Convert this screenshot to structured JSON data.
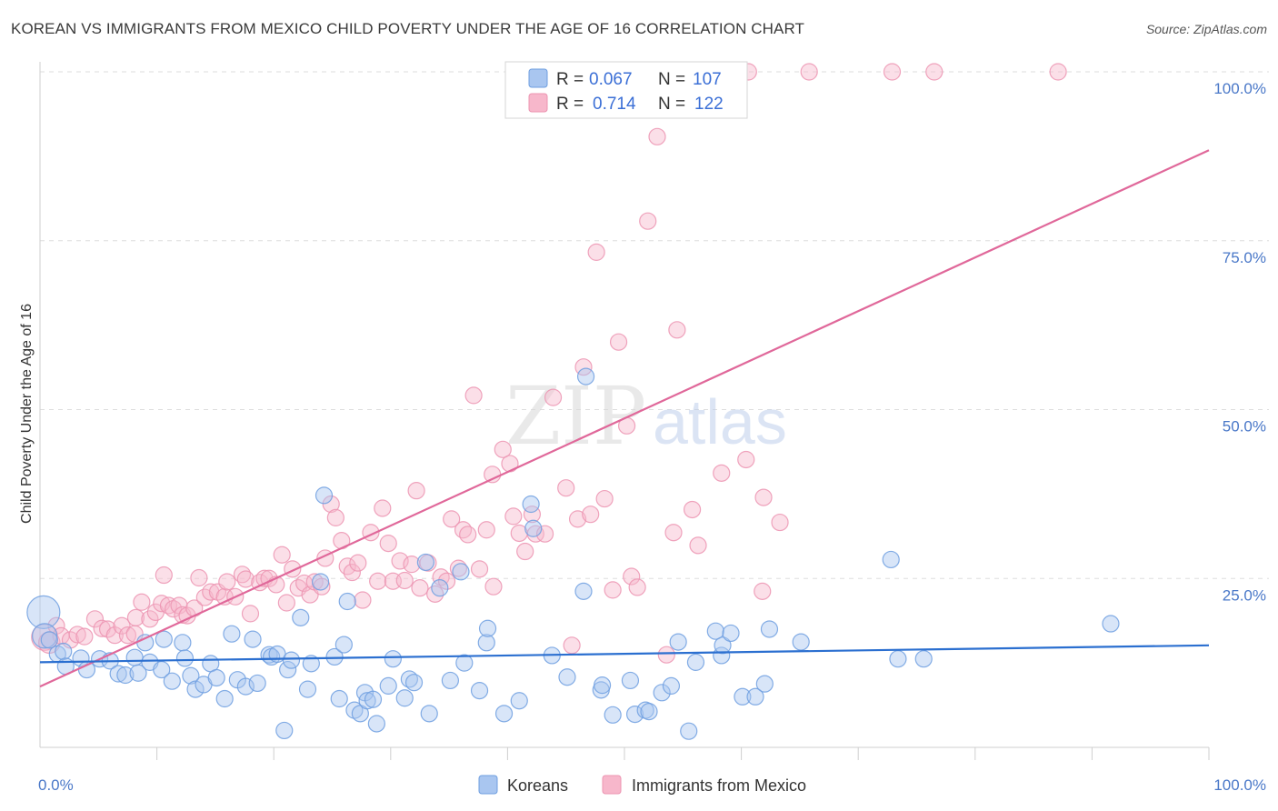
{
  "header": {
    "title": "KOREAN VS IMMIGRANTS FROM MEXICO CHILD POVERTY UNDER THE AGE OF 16 CORRELATION CHART",
    "source": "Source: ZipAtlas.com"
  },
  "watermark": {
    "zip": "ZIP",
    "atlas": "atlas"
  },
  "legend": {
    "korean": {
      "r_label": "R =",
      "r_value": "0.067",
      "n_label": "N =",
      "n_value": "107"
    },
    "mexico": {
      "r_label": "R =",
      "r_value": "0.714",
      "n_label": "N =",
      "n_value": "122"
    }
  },
  "bottom_legend": {
    "korean": "Koreans",
    "mexico": "Immigrants from Mexico"
  },
  "colors": {
    "korean_fill": "#a9c6f0",
    "korean_stroke": "#6f9fe0",
    "korean_line": "#2b6fd0",
    "mexico_fill": "#f7b7cb",
    "mexico_stroke": "#ec94b2",
    "mexico_line": "#e0689a",
    "tick_text": "#4a78c8",
    "grid": "#dedede"
  },
  "chart_data": {
    "type": "scatter",
    "title": "KOREAN VS IMMIGRANTS FROM MEXICO CHILD POVERTY UNDER THE AGE OF 16 CORRELATION CHART",
    "xlabel": "",
    "ylabel": "Child Poverty Under the Age of 16",
    "xlim": [
      0,
      100
    ],
    "ylim": [
      0,
      100
    ],
    "x_tick_labels": [
      "0.0%",
      "100.0%"
    ],
    "y_tick_labels": [
      "100.0%",
      "75.0%",
      "50.0%",
      "25.0%"
    ],
    "y_ticks": [
      100,
      75,
      50,
      25
    ],
    "grid": true,
    "legend_position": "top-center",
    "series": [
      {
        "name": "Koreans",
        "r": 0.067,
        "n": 107,
        "trend": [
          [
            0,
            12.6
          ],
          [
            100,
            15.1
          ]
        ],
        "points": [
          [
            0.3,
            20.0,
            2
          ],
          [
            0.4,
            16.5,
            1.5
          ],
          [
            0.8,
            15.9,
            1
          ],
          [
            1.5,
            13.8,
            1
          ],
          [
            2.0,
            14.2,
            1
          ],
          [
            2.2,
            12.0,
            1
          ],
          [
            3.5,
            13.2,
            1
          ],
          [
            4.0,
            11.5,
            1
          ],
          [
            5.1,
            13.1,
            1
          ],
          [
            6.0,
            12.8,
            1
          ],
          [
            6.7,
            10.9,
            1
          ],
          [
            7.3,
            10.7,
            1
          ],
          [
            8.1,
            13.3,
            1
          ],
          [
            8.4,
            11.0,
            1
          ],
          [
            9.0,
            15.5,
            1
          ],
          [
            9.4,
            12.6,
            1
          ],
          [
            10.4,
            11.5,
            1
          ],
          [
            10.6,
            16.0,
            1
          ],
          [
            11.3,
            9.8,
            1
          ],
          [
            12.2,
            15.5,
            1
          ],
          [
            12.4,
            13.2,
            1
          ],
          [
            12.9,
            10.6,
            1
          ],
          [
            13.3,
            8.6,
            1
          ],
          [
            14.0,
            9.3,
            1
          ],
          [
            14.6,
            12.4,
            1
          ],
          [
            15.1,
            10.3,
            1
          ],
          [
            15.8,
            7.2,
            1
          ],
          [
            16.4,
            16.8,
            1
          ],
          [
            16.9,
            10.0,
            1
          ],
          [
            17.6,
            9.0,
            1
          ],
          [
            18.2,
            16.0,
            1
          ],
          [
            18.6,
            9.5,
            1
          ],
          [
            19.6,
            13.7,
            1
          ],
          [
            19.8,
            13.4,
            1
          ],
          [
            20.3,
            13.8,
            1
          ],
          [
            20.9,
            2.5,
            1
          ],
          [
            21.2,
            11.5,
            1
          ],
          [
            21.5,
            12.9,
            1
          ],
          [
            22.3,
            19.2,
            1
          ],
          [
            22.9,
            8.6,
            1
          ],
          [
            23.2,
            12.4,
            1
          ],
          [
            24.0,
            24.5,
            1
          ],
          [
            24.3,
            37.3,
            1
          ],
          [
            25.2,
            13.4,
            1
          ],
          [
            25.6,
            7.2,
            1
          ],
          [
            26.0,
            15.2,
            1
          ],
          [
            26.3,
            21.6,
            1
          ],
          [
            26.9,
            5.5,
            1
          ],
          [
            27.4,
            5.0,
            1
          ],
          [
            27.8,
            8.1,
            1
          ],
          [
            28.0,
            6.9,
            1
          ],
          [
            28.5,
            7.1,
            1
          ],
          [
            28.8,
            3.5,
            1
          ],
          [
            29.8,
            9.1,
            1
          ],
          [
            30.2,
            13.1,
            1
          ],
          [
            31.2,
            7.3,
            1
          ],
          [
            31.6,
            10.1,
            1
          ],
          [
            32.0,
            9.6,
            1
          ],
          [
            33.0,
            27.4,
            1
          ],
          [
            33.3,
            5.0,
            1
          ],
          [
            34.2,
            23.6,
            1
          ],
          [
            35.1,
            9.9,
            1
          ],
          [
            36.0,
            26.0,
            1
          ],
          [
            36.3,
            12.5,
            1
          ],
          [
            37.6,
            8.4,
            1
          ],
          [
            38.2,
            15.5,
            1
          ],
          [
            38.3,
            17.6,
            1
          ],
          [
            39.7,
            5.0,
            1
          ],
          [
            41.0,
            6.9,
            1
          ],
          [
            42.0,
            36.0,
            1
          ],
          [
            42.2,
            32.4,
            1
          ],
          [
            43.8,
            13.6,
            1
          ],
          [
            45.1,
            10.4,
            1
          ],
          [
            46.7,
            54.9,
            1
          ],
          [
            46.5,
            23.1,
            1
          ],
          [
            48.0,
            8.5,
            1
          ],
          [
            48.1,
            9.2,
            1
          ],
          [
            49.0,
            4.8,
            1
          ],
          [
            50.5,
            9.9,
            1
          ],
          [
            50.9,
            4.9,
            1
          ],
          [
            51.8,
            5.5,
            1
          ],
          [
            52.1,
            5.3,
            1
          ],
          [
            53.2,
            8.1,
            1
          ],
          [
            54.0,
            9.1,
            1
          ],
          [
            54.6,
            15.6,
            1
          ],
          [
            55.5,
            2.4,
            1
          ],
          [
            56.1,
            12.6,
            1
          ],
          [
            57.8,
            17.2,
            1
          ],
          [
            58.3,
            13.6,
            1
          ],
          [
            58.4,
            15.1,
            1
          ],
          [
            59.1,
            16.9,
            1
          ],
          [
            60.1,
            7.5,
            1
          ],
          [
            61.2,
            7.5,
            1
          ],
          [
            62.0,
            9.4,
            1
          ],
          [
            62.4,
            17.5,
            1
          ],
          [
            65.1,
            15.6,
            1
          ],
          [
            72.8,
            27.8,
            1
          ],
          [
            73.4,
            13.1,
            1
          ],
          [
            75.6,
            13.1,
            1
          ],
          [
            91.6,
            18.3,
            1
          ]
        ]
      },
      {
        "name": "Immigrants from Mexico",
        "r": 0.714,
        "n": 122,
        "trend": [
          [
            0,
            9.0
          ],
          [
            100,
            88.4
          ]
        ],
        "points": [
          [
            0.4,
            16.3,
            1.6
          ],
          [
            0.8,
            15.5,
            1.3
          ],
          [
            1.4,
            18.0,
            1
          ],
          [
            1.8,
            16.5,
            1
          ],
          [
            2.6,
            15.9,
            1
          ],
          [
            3.2,
            16.7,
            1
          ],
          [
            3.8,
            16.4,
            1
          ],
          [
            4.7,
            19.0,
            1
          ],
          [
            5.3,
            17.6,
            1
          ],
          [
            5.8,
            17.5,
            1
          ],
          [
            6.4,
            16.6,
            1
          ],
          [
            7.0,
            18.0,
            1
          ],
          [
            7.5,
            16.6,
            1
          ],
          [
            8.1,
            16.8,
            1
          ],
          [
            8.2,
            19.2,
            1
          ],
          [
            8.7,
            21.5,
            1
          ],
          [
            9.4,
            19.0,
            1
          ],
          [
            9.9,
            20.0,
            1
          ],
          [
            10.4,
            21.3,
            1
          ],
          [
            10.6,
            25.5,
            1
          ],
          [
            11.0,
            21.0,
            1
          ],
          [
            11.4,
            20.5,
            1
          ],
          [
            11.9,
            21.0,
            1
          ],
          [
            12.2,
            19.6,
            1
          ],
          [
            12.6,
            19.5,
            1
          ],
          [
            13.2,
            20.6,
            1
          ],
          [
            13.6,
            25.1,
            1
          ],
          [
            14.1,
            22.2,
            1
          ],
          [
            14.6,
            23.0,
            1
          ],
          [
            15.2,
            23.0,
            1
          ],
          [
            15.8,
            22.3,
            1
          ],
          [
            16.0,
            24.5,
            1
          ],
          [
            16.7,
            22.3,
            1
          ],
          [
            17.3,
            25.6,
            1
          ],
          [
            17.6,
            24.9,
            1
          ],
          [
            18.0,
            19.8,
            1
          ],
          [
            18.8,
            24.4,
            1
          ],
          [
            19.2,
            25.0,
            1
          ],
          [
            19.6,
            25.0,
            1
          ],
          [
            20.2,
            24.1,
            1
          ],
          [
            20.7,
            28.5,
            1
          ],
          [
            21.1,
            21.4,
            1
          ],
          [
            21.6,
            26.4,
            1
          ],
          [
            22.1,
            23.6,
            1
          ],
          [
            22.6,
            24.3,
            1
          ],
          [
            23.1,
            22.6,
            1
          ],
          [
            23.5,
            24.5,
            1
          ],
          [
            24.1,
            23.8,
            1
          ],
          [
            24.4,
            28.0,
            1
          ],
          [
            24.9,
            36.0,
            1
          ],
          [
            25.3,
            34.0,
            1
          ],
          [
            25.8,
            30.6,
            1
          ],
          [
            26.3,
            26.8,
            1
          ],
          [
            26.7,
            25.9,
            1
          ],
          [
            27.2,
            27.3,
            1
          ],
          [
            27.6,
            21.8,
            1
          ],
          [
            28.3,
            31.8,
            1
          ],
          [
            28.9,
            24.6,
            1
          ],
          [
            29.3,
            35.4,
            1
          ],
          [
            29.8,
            30.2,
            1
          ],
          [
            30.2,
            24.6,
            1
          ],
          [
            30.8,
            27.6,
            1
          ],
          [
            31.2,
            24.7,
            1
          ],
          [
            31.8,
            27.1,
            1
          ],
          [
            32.2,
            38.0,
            1
          ],
          [
            32.5,
            23.6,
            1
          ],
          [
            33.2,
            27.3,
            1
          ],
          [
            33.8,
            22.7,
            1
          ],
          [
            34.3,
            25.2,
            1
          ],
          [
            34.8,
            24.6,
            1
          ],
          [
            35.2,
            33.8,
            1
          ],
          [
            35.8,
            26.5,
            1
          ],
          [
            36.2,
            32.2,
            1
          ],
          [
            36.6,
            31.5,
            1
          ],
          [
            37.1,
            52.1,
            1
          ],
          [
            37.6,
            26.4,
            1
          ],
          [
            38.2,
            32.2,
            1
          ],
          [
            38.8,
            23.8,
            1
          ],
          [
            38.7,
            40.4,
            1
          ],
          [
            39.6,
            44.1,
            1
          ],
          [
            40.2,
            42.0,
            1
          ],
          [
            40.5,
            34.2,
            1
          ],
          [
            41.0,
            31.7,
            1
          ],
          [
            41.5,
            29.0,
            1
          ],
          [
            42.1,
            34.5,
            1
          ],
          [
            42.4,
            31.6,
            1
          ],
          [
            43.2,
            31.6,
            1
          ],
          [
            43.9,
            51.8,
            1
          ],
          [
            45.0,
            38.4,
            1
          ],
          [
            45.5,
            15.1,
            1
          ],
          [
            46.0,
            33.8,
            1
          ],
          [
            46.5,
            56.3,
            1
          ],
          [
            47.1,
            34.5,
            1
          ],
          [
            47.6,
            73.3,
            1
          ],
          [
            48.3,
            36.8,
            1
          ],
          [
            49.0,
            23.3,
            1
          ],
          [
            49.5,
            60.0,
            1
          ],
          [
            50.2,
            47.6,
            1
          ],
          [
            50.6,
            25.3,
            1
          ],
          [
            51.1,
            23.7,
            1
          ],
          [
            52.0,
            77.9,
            1
          ],
          [
            52.8,
            90.4,
            1
          ],
          [
            53.6,
            13.7,
            1
          ],
          [
            54.2,
            31.8,
            1
          ],
          [
            54.5,
            61.8,
            1
          ],
          [
            55.8,
            35.2,
            1
          ],
          [
            56.3,
            29.9,
            1
          ],
          [
            58.3,
            40.6,
            1
          ],
          [
            60.4,
            42.6,
            1
          ],
          [
            60.6,
            100.0,
            1
          ],
          [
            61.8,
            23.1,
            1
          ],
          [
            61.9,
            37.0,
            1
          ],
          [
            63.3,
            33.3,
            1
          ],
          [
            65.8,
            100.0,
            1
          ],
          [
            72.9,
            100.0,
            1
          ],
          [
            76.5,
            100.0,
            1
          ],
          [
            87.1,
            100.0,
            1
          ]
        ]
      }
    ]
  }
}
